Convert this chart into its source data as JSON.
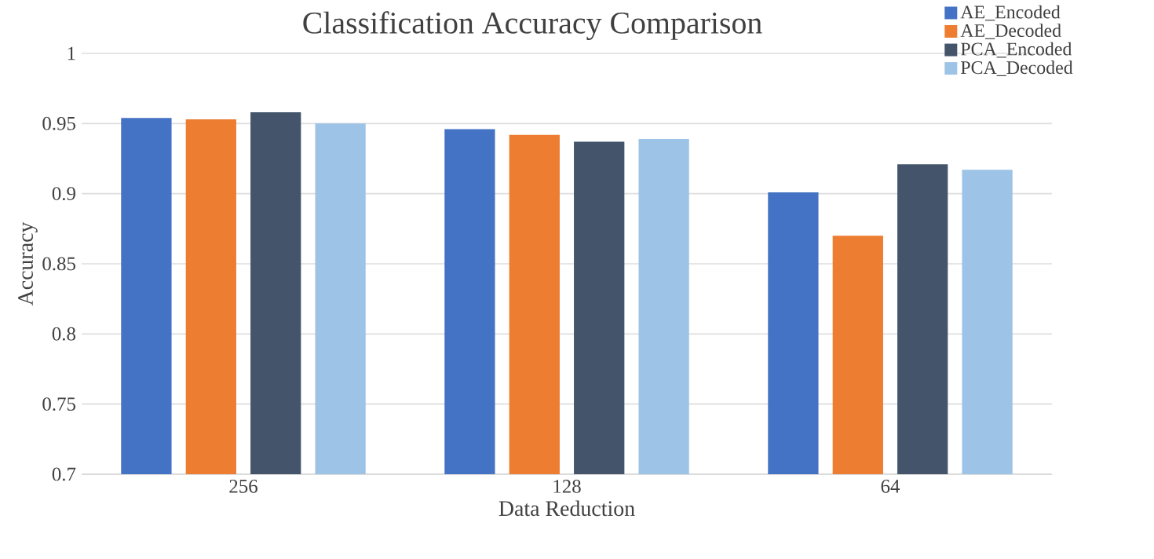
{
  "chart_data": {
    "type": "bar",
    "title": "Classification Accuracy Comparison",
    "xlabel": "Data Reduction",
    "ylabel": "Accuracy",
    "categories": [
      "256",
      "128",
      "64"
    ],
    "series": [
      {
        "name": "AE_Encoded",
        "color": "#4472c4",
        "values": [
          0.954,
          0.946,
          0.901
        ]
      },
      {
        "name": "AE_Decoded",
        "color": "#ed7d31",
        "values": [
          0.953,
          0.942,
          0.87
        ]
      },
      {
        "name": "PCA_Encoded",
        "color": "#44546a",
        "values": [
          0.958,
          0.937,
          0.921
        ]
      },
      {
        "name": "PCA_Decoded",
        "color": "#9dc3e6",
        "values": [
          0.95,
          0.939,
          0.917
        ]
      }
    ],
    "ylim": [
      0.7,
      1
    ],
    "yticks": [
      0.7,
      0.75,
      0.8,
      0.85,
      0.9,
      0.95,
      1
    ],
    "grid": "y",
    "legend": "top right"
  }
}
